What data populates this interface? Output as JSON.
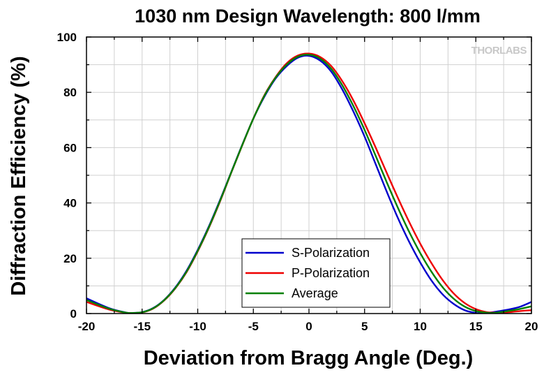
{
  "chart_data": {
    "type": "line",
    "title": "1030 nm Design Wavelength: 800 l/mm",
    "xlabel": "Deviation from Bragg Angle (Deg.)",
    "ylabel": "Diffraction Efficiency (%)",
    "xlim": [
      -20,
      20
    ],
    "ylim": [
      0,
      100
    ],
    "xticks": [
      -20,
      -15,
      -10,
      -5,
      0,
      5,
      10,
      15,
      20
    ],
    "yticks": [
      0,
      20,
      40,
      60,
      80,
      100
    ],
    "grid": true,
    "legend_position": "bottom-center",
    "watermark": "THORLABS",
    "series": [
      {
        "name": "S-Polarization",
        "color": "#0000cc",
        "x": [
          -20,
          -18,
          -16.5,
          -16,
          -15,
          -14,
          -13,
          -12,
          -11,
          -10,
          -9,
          -8,
          -7,
          -6,
          -5,
          -4,
          -3,
          -2,
          -1,
          0,
          1,
          2,
          3,
          4,
          5,
          6,
          7,
          8,
          9,
          10,
          11,
          12,
          13,
          14,
          15,
          15.5,
          16,
          17,
          18,
          19,
          20
        ],
        "y": [
          5.5,
          2,
          0.4,
          0.2,
          0.5,
          2,
          5,
          9.5,
          15.5,
          23,
          31.5,
          41,
          51,
          61,
          70.5,
          78.5,
          85,
          89.5,
          92.5,
          93.2,
          91.5,
          87.5,
          81,
          73,
          64,
          54,
          44,
          34.5,
          26,
          18.5,
          12,
          7,
          3.5,
          1.2,
          0.2,
          0.1,
          0.2,
          0.8,
          1.5,
          2.5,
          4.2
        ]
      },
      {
        "name": "P-Polarization",
        "color": "#ee0000",
        "x": [
          -20,
          -18,
          -16.5,
          -16,
          -15,
          -14,
          -13,
          -12,
          -11,
          -10,
          -9,
          -8,
          -7,
          -6,
          -5,
          -4,
          -3,
          -2,
          -1,
          0,
          1,
          2,
          3,
          4,
          5,
          6,
          7,
          8,
          9,
          10,
          11,
          12,
          13,
          14,
          15,
          16,
          17,
          17.5,
          18,
          19,
          20
        ],
        "y": [
          4.2,
          1.5,
          0.3,
          0.2,
          0.4,
          1.8,
          4.8,
          9.2,
          15,
          22.5,
          31,
          40.5,
          50.8,
          60.8,
          70.5,
          79,
          85.5,
          90.5,
          93.3,
          94,
          92.8,
          89.5,
          84,
          77,
          68.8,
          60,
          50.8,
          41.8,
          33.2,
          25.3,
          18.3,
          12.2,
          7.3,
          3.8,
          1.6,
          0.5,
          0.3,
          0.3,
          0.5,
          0.9,
          1.2
        ]
      },
      {
        "name": "Average",
        "color": "#008000",
        "x": [
          -20,
          -18,
          -16.5,
          -16,
          -15,
          -14,
          -13,
          -12,
          -11,
          -10,
          -9,
          -8,
          -7,
          -6,
          -5,
          -4,
          -3,
          -2,
          -1,
          0,
          1,
          2,
          3,
          4,
          5,
          6,
          7,
          8,
          9,
          10,
          11,
          12,
          13,
          14,
          15,
          16,
          16.5,
          17,
          18,
          19,
          20
        ],
        "y": [
          4.9,
          1.8,
          0.35,
          0.2,
          0.45,
          1.9,
          4.9,
          9.3,
          15.2,
          22.7,
          31.2,
          40.7,
          50.9,
          60.9,
          70.5,
          78.8,
          85.3,
          90,
          92.9,
          93.6,
          92.2,
          88.5,
          82.5,
          75,
          66.4,
          57,
          47.4,
          38.2,
          29.6,
          21.9,
          15.2,
          9.6,
          5.4,
          2.5,
          0.9,
          0.3,
          0.2,
          0.4,
          1,
          1.7,
          2.6
        ]
      }
    ]
  }
}
